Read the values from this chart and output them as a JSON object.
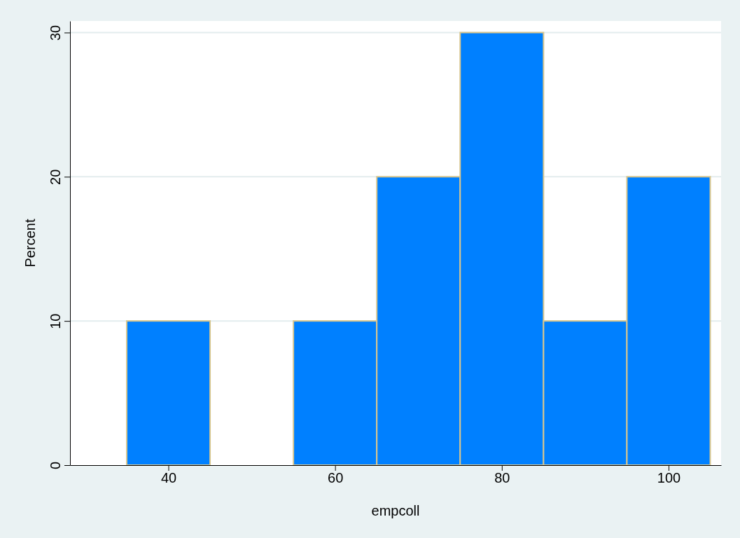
{
  "chart_data": {
    "type": "histogram",
    "xlabel": "empcoll",
    "ylabel": "Percent",
    "bins": [
      35,
      45,
      55,
      65,
      75,
      85,
      95,
      105
    ],
    "values": [
      10,
      0,
      10,
      20,
      30,
      10,
      20
    ],
    "color": "#0080ff",
    "xlim": [
      28.2,
      106.3
    ],
    "xticks": [
      40,
      60,
      80,
      100
    ],
    "ylim": [
      0,
      30.8
    ],
    "yticks": [
      0,
      10,
      20,
      30
    ],
    "grid": "y"
  }
}
